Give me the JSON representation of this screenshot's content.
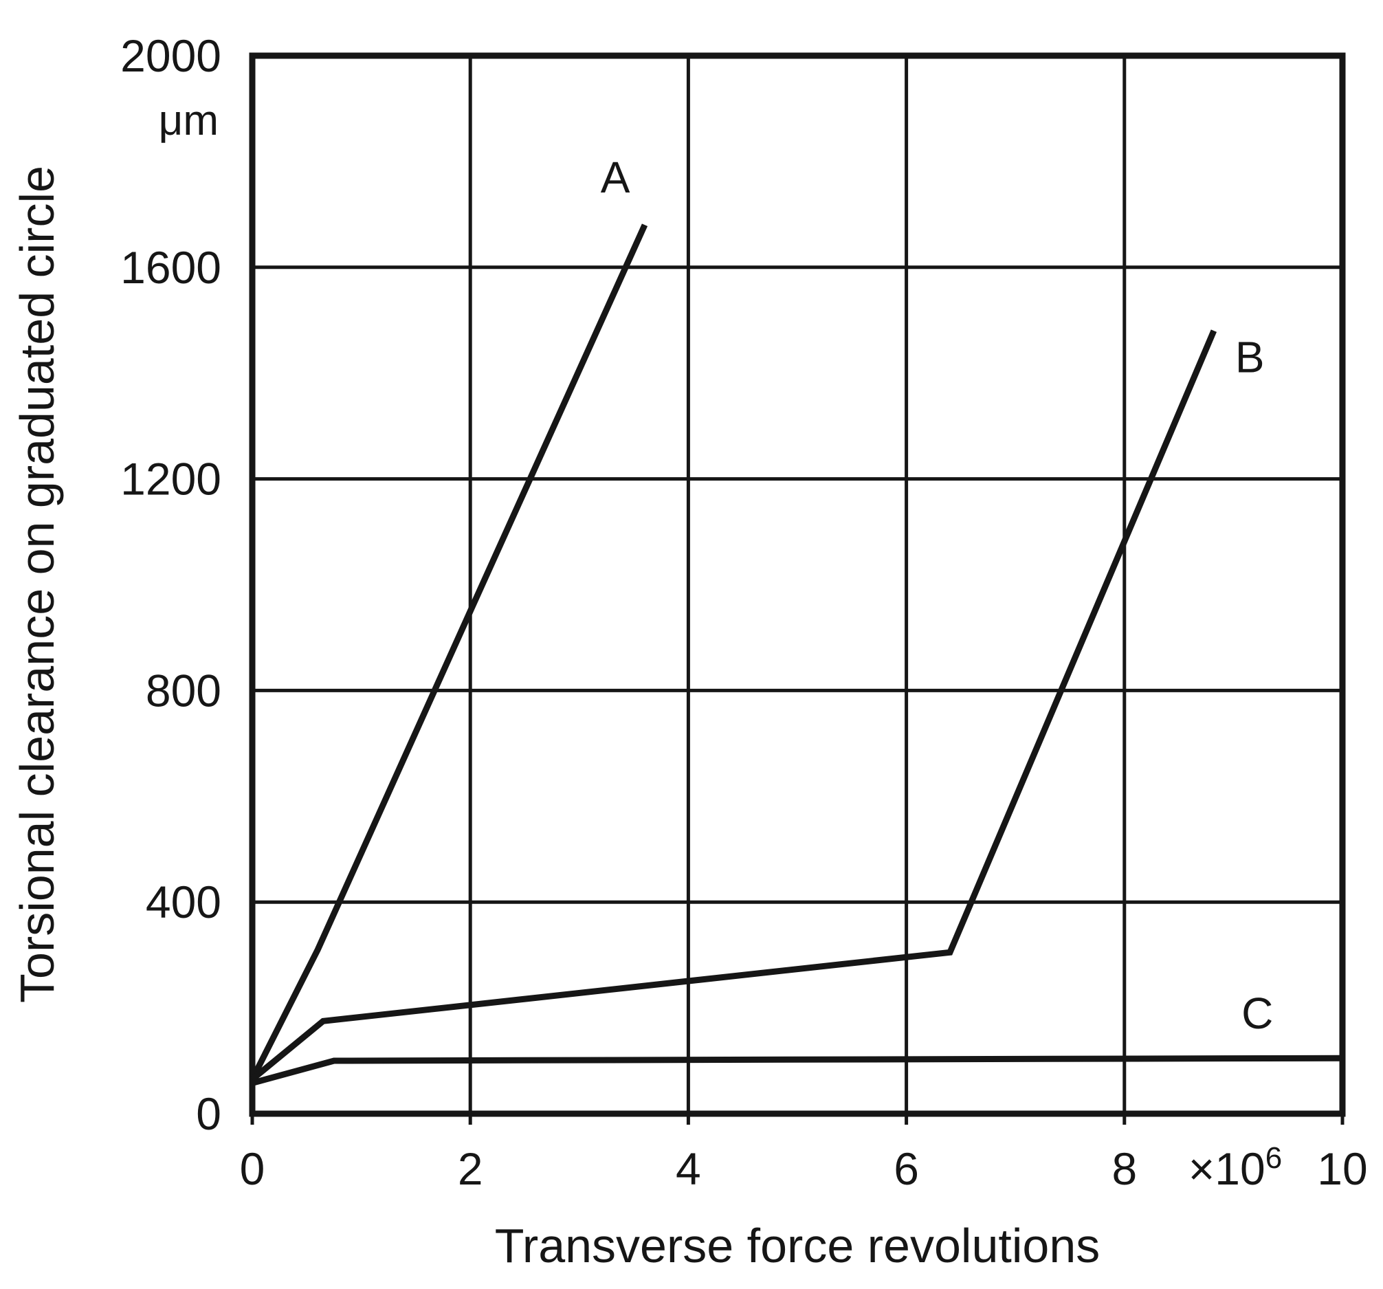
{
  "page": {
    "background_color": "#ffffff",
    "ink_color": "#161616"
  },
  "chart_data": {
    "type": "line",
    "title": "",
    "xlabel": "Transverse force revolutions",
    "ylabel": "Torsional clearance on graduated circle",
    "y_unit": "μm",
    "x_scale_label": "×10",
    "x_scale_exponent": "6",
    "xlim": [
      0,
      10
    ],
    "ylim": [
      0,
      2000
    ],
    "xticks": [
      0,
      2,
      4,
      6,
      8,
      10
    ],
    "yticks": [
      0,
      400,
      800,
      1200,
      1600,
      2000
    ],
    "grid": true,
    "legend_position": "inline-labels",
    "line_color": "#161616",
    "grid_color": "#161616",
    "series": [
      {
        "name": "A",
        "points": [
          [
            0,
            65
          ],
          [
            0.6,
            310
          ],
          [
            2.0,
            950
          ],
          [
            3.6,
            1680
          ]
        ],
        "label_at": [
          3.33,
          1770
        ]
      },
      {
        "name": "B",
        "points": [
          [
            0,
            65
          ],
          [
            0.65,
            175
          ],
          [
            6.4,
            305
          ],
          [
            8.82,
            1480
          ]
        ],
        "label_at": [
          9.15,
          1430
        ]
      },
      {
        "name": "C",
        "points": [
          [
            0,
            58
          ],
          [
            0.75,
            100
          ],
          [
            10,
            105
          ]
        ],
        "label_at": [
          9.22,
          190
        ]
      }
    ]
  }
}
